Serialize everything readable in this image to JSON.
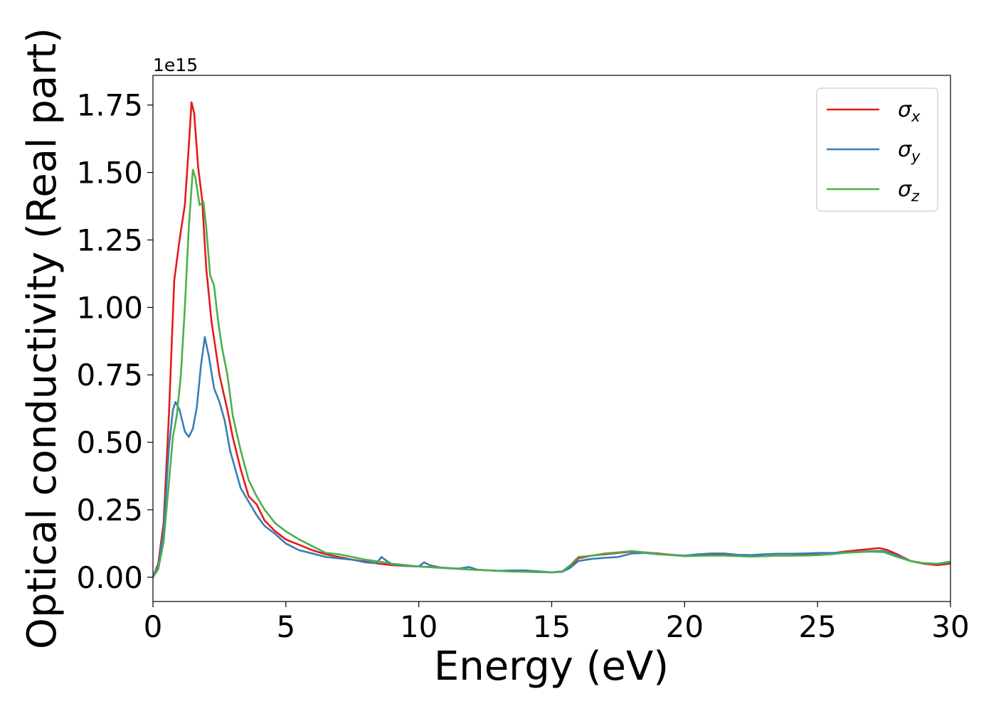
{
  "chart_data": {
    "type": "line",
    "title": "",
    "xlabel": "Energy (eV)",
    "ylabel": "Optical conductivity (Real part)",
    "y_offset_label": "1e15",
    "y_multiplier": 1000000000000000.0,
    "xlim": [
      0,
      30
    ],
    "ylim": [
      -0.09,
      1.86
    ],
    "x_ticks": [
      0,
      5,
      10,
      15,
      20,
      25,
      30
    ],
    "x_tick_labels": [
      "0",
      "5",
      "10",
      "15",
      "20",
      "25",
      "30"
    ],
    "y_ticks": [
      0.0,
      0.25,
      0.5,
      0.75,
      1.0,
      1.25,
      1.5,
      1.75
    ],
    "y_tick_labels": [
      "0.00",
      "0.25",
      "0.50",
      "0.75",
      "1.00",
      "1.25",
      "1.50",
      "1.75"
    ],
    "grid": false,
    "legend_position": "top-right",
    "series": [
      {
        "name": "σx",
        "symbol": "σ",
        "subscript": "x",
        "color": "#e41a1c",
        "points": [
          [
            0,
            0.0
          ],
          [
            0.2,
            0.05
          ],
          [
            0.4,
            0.2
          ],
          [
            0.6,
            0.6
          ],
          [
            0.8,
            1.1
          ],
          [
            1.0,
            1.25
          ],
          [
            1.2,
            1.38
          ],
          [
            1.35,
            1.6
          ],
          [
            1.45,
            1.76
          ],
          [
            1.55,
            1.72
          ],
          [
            1.7,
            1.52
          ],
          [
            1.85,
            1.4
          ],
          [
            2.0,
            1.15
          ],
          [
            2.2,
            0.95
          ],
          [
            2.5,
            0.75
          ],
          [
            2.8,
            0.62
          ],
          [
            3.0,
            0.52
          ],
          [
            3.3,
            0.4
          ],
          [
            3.6,
            0.3
          ],
          [
            3.9,
            0.27
          ],
          [
            4.2,
            0.21
          ],
          [
            4.6,
            0.17
          ],
          [
            5.0,
            0.14
          ],
          [
            5.5,
            0.12
          ],
          [
            6.0,
            0.1
          ],
          [
            6.5,
            0.085
          ],
          [
            7.0,
            0.075
          ],
          [
            7.5,
            0.065
          ],
          [
            8.0,
            0.058
          ],
          [
            8.5,
            0.05
          ],
          [
            9.0,
            0.045
          ],
          [
            9.5,
            0.042
          ],
          [
            10.0,
            0.04
          ],
          [
            10.5,
            0.037
          ],
          [
            11.0,
            0.034
          ],
          [
            11.5,
            0.031
          ],
          [
            12.0,
            0.028
          ],
          [
            12.5,
            0.026
          ],
          [
            13.0,
            0.024
          ],
          [
            13.5,
            0.022
          ],
          [
            14.0,
            0.021
          ],
          [
            14.5,
            0.02
          ],
          [
            15.0,
            0.018
          ],
          [
            15.4,
            0.022
          ],
          [
            15.7,
            0.04
          ],
          [
            16.0,
            0.07
          ],
          [
            16.5,
            0.08
          ],
          [
            17.0,
            0.085
          ],
          [
            17.5,
            0.09
          ],
          [
            18.0,
            0.095
          ],
          [
            18.5,
            0.092
          ],
          [
            19.0,
            0.088
          ],
          [
            19.5,
            0.083
          ],
          [
            20.0,
            0.08
          ],
          [
            20.5,
            0.08
          ],
          [
            21.0,
            0.082
          ],
          [
            21.5,
            0.083
          ],
          [
            22.0,
            0.08
          ],
          [
            22.5,
            0.078
          ],
          [
            23.0,
            0.078
          ],
          [
            23.5,
            0.08
          ],
          [
            24.0,
            0.08
          ],
          [
            24.5,
            0.082
          ],
          [
            25.0,
            0.085
          ],
          [
            25.5,
            0.088
          ],
          [
            26.0,
            0.095
          ],
          [
            26.5,
            0.1
          ],
          [
            27.0,
            0.105
          ],
          [
            27.3,
            0.108
          ],
          [
            27.6,
            0.102
          ],
          [
            28.0,
            0.085
          ],
          [
            28.5,
            0.06
          ],
          [
            29.0,
            0.05
          ],
          [
            29.5,
            0.045
          ],
          [
            30.0,
            0.05
          ]
        ]
      },
      {
        "name": "σy",
        "symbol": "σ",
        "subscript": "y",
        "color": "#377eb8",
        "points": [
          [
            0,
            0.0
          ],
          [
            0.2,
            0.04
          ],
          [
            0.4,
            0.17
          ],
          [
            0.6,
            0.48
          ],
          [
            0.75,
            0.62
          ],
          [
            0.85,
            0.65
          ],
          [
            1.0,
            0.62
          ],
          [
            1.2,
            0.54
          ],
          [
            1.35,
            0.52
          ],
          [
            1.5,
            0.55
          ],
          [
            1.65,
            0.63
          ],
          [
            1.8,
            0.78
          ],
          [
            1.95,
            0.89
          ],
          [
            2.1,
            0.82
          ],
          [
            2.3,
            0.7
          ],
          [
            2.5,
            0.65
          ],
          [
            2.7,
            0.58
          ],
          [
            2.9,
            0.47
          ],
          [
            3.1,
            0.4
          ],
          [
            3.3,
            0.33
          ],
          [
            3.6,
            0.28
          ],
          [
            3.9,
            0.23
          ],
          [
            4.2,
            0.19
          ],
          [
            4.6,
            0.16
          ],
          [
            5.0,
            0.125
          ],
          [
            5.5,
            0.1
          ],
          [
            6.0,
            0.088
          ],
          [
            6.5,
            0.075
          ],
          [
            7.0,
            0.07
          ],
          [
            7.5,
            0.065
          ],
          [
            8.0,
            0.055
          ],
          [
            8.4,
            0.052
          ],
          [
            8.6,
            0.075
          ],
          [
            8.8,
            0.06
          ],
          [
            9.0,
            0.048
          ],
          [
            9.5,
            0.042
          ],
          [
            10.0,
            0.04
          ],
          [
            10.2,
            0.055
          ],
          [
            10.4,
            0.045
          ],
          [
            10.8,
            0.036
          ],
          [
            11.5,
            0.032
          ],
          [
            11.9,
            0.038
          ],
          [
            12.2,
            0.028
          ],
          [
            12.5,
            0.026
          ],
          [
            13.0,
            0.024
          ],
          [
            13.5,
            0.025
          ],
          [
            14.0,
            0.025
          ],
          [
            14.5,
            0.022
          ],
          [
            15.0,
            0.018
          ],
          [
            15.4,
            0.02
          ],
          [
            15.7,
            0.035
          ],
          [
            16.0,
            0.06
          ],
          [
            16.5,
            0.068
          ],
          [
            17.0,
            0.072
          ],
          [
            17.5,
            0.075
          ],
          [
            18.0,
            0.088
          ],
          [
            18.5,
            0.09
          ],
          [
            19.0,
            0.085
          ],
          [
            19.5,
            0.082
          ],
          [
            20.0,
            0.08
          ],
          [
            20.5,
            0.085
          ],
          [
            21.0,
            0.088
          ],
          [
            21.5,
            0.088
          ],
          [
            22.0,
            0.083
          ],
          [
            22.5,
            0.082
          ],
          [
            23.0,
            0.085
          ],
          [
            23.5,
            0.087
          ],
          [
            24.0,
            0.087
          ],
          [
            24.5,
            0.088
          ],
          [
            25.0,
            0.09
          ],
          [
            25.5,
            0.09
          ],
          [
            26.0,
            0.092
          ],
          [
            26.5,
            0.093
          ],
          [
            27.0,
            0.097
          ],
          [
            27.5,
            0.097
          ],
          [
            28.0,
            0.08
          ],
          [
            28.5,
            0.06
          ],
          [
            29.0,
            0.052
          ],
          [
            29.5,
            0.05
          ],
          [
            30.0,
            0.055
          ]
        ]
      },
      {
        "name": "σz",
        "symbol": "σ",
        "subscript": "z",
        "color": "#4daf4a",
        "points": [
          [
            0,
            0.0
          ],
          [
            0.2,
            0.03
          ],
          [
            0.4,
            0.13
          ],
          [
            0.6,
            0.35
          ],
          [
            0.75,
            0.52
          ],
          [
            0.9,
            0.6
          ],
          [
            1.05,
            0.75
          ],
          [
            1.2,
            1.0
          ],
          [
            1.35,
            1.3
          ],
          [
            1.5,
            1.51
          ],
          [
            1.6,
            1.48
          ],
          [
            1.75,
            1.38
          ],
          [
            1.9,
            1.39
          ],
          [
            2.0,
            1.3
          ],
          [
            2.15,
            1.12
          ],
          [
            2.3,
            1.08
          ],
          [
            2.45,
            0.95
          ],
          [
            2.6,
            0.85
          ],
          [
            2.8,
            0.75
          ],
          [
            3.0,
            0.6
          ],
          [
            3.3,
            0.47
          ],
          [
            3.6,
            0.36
          ],
          [
            3.9,
            0.3
          ],
          [
            4.2,
            0.25
          ],
          [
            4.6,
            0.2
          ],
          [
            5.0,
            0.17
          ],
          [
            5.5,
            0.14
          ],
          [
            6.0,
            0.115
          ],
          [
            6.5,
            0.09
          ],
          [
            7.0,
            0.085
          ],
          [
            7.5,
            0.075
          ],
          [
            8.0,
            0.065
          ],
          [
            8.5,
            0.058
          ],
          [
            9.0,
            0.05
          ],
          [
            9.5,
            0.045
          ],
          [
            10.0,
            0.04
          ],
          [
            10.5,
            0.037
          ],
          [
            11.0,
            0.034
          ],
          [
            11.5,
            0.031
          ],
          [
            12.0,
            0.028
          ],
          [
            12.5,
            0.026
          ],
          [
            13.0,
            0.023
          ],
          [
            13.5,
            0.021
          ],
          [
            14.0,
            0.02
          ],
          [
            14.5,
            0.019
          ],
          [
            15.0,
            0.018
          ],
          [
            15.4,
            0.022
          ],
          [
            15.7,
            0.045
          ],
          [
            16.0,
            0.075
          ],
          [
            16.5,
            0.08
          ],
          [
            17.0,
            0.088
          ],
          [
            17.5,
            0.092
          ],
          [
            18.0,
            0.097
          ],
          [
            18.5,
            0.092
          ],
          [
            19.0,
            0.086
          ],
          [
            19.5,
            0.082
          ],
          [
            20.0,
            0.078
          ],
          [
            20.5,
            0.079
          ],
          [
            21.0,
            0.08
          ],
          [
            21.5,
            0.08
          ],
          [
            22.0,
            0.078
          ],
          [
            22.5,
            0.076
          ],
          [
            23.0,
            0.078
          ],
          [
            23.5,
            0.08
          ],
          [
            24.0,
            0.08
          ],
          [
            24.5,
            0.08
          ],
          [
            25.0,
            0.082
          ],
          [
            25.5,
            0.085
          ],
          [
            26.0,
            0.09
          ],
          [
            26.5,
            0.093
          ],
          [
            27.0,
            0.095
          ],
          [
            27.5,
            0.093
          ],
          [
            28.0,
            0.075
          ],
          [
            28.5,
            0.06
          ],
          [
            29.0,
            0.052
          ],
          [
            29.5,
            0.05
          ],
          [
            30.0,
            0.058
          ]
        ]
      }
    ]
  }
}
